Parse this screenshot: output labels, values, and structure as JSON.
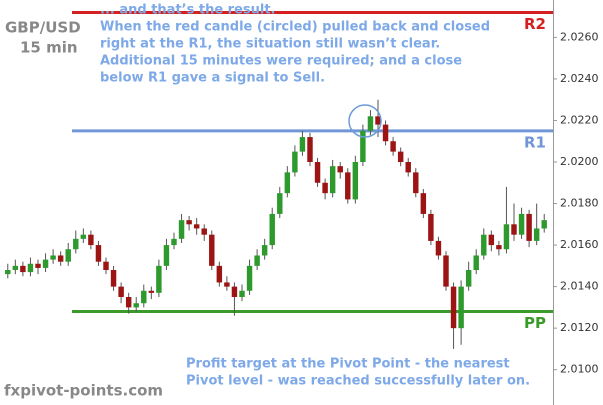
{
  "chart_data": {
    "type": "candlestick",
    "title": "GBP/USD",
    "subtitle": "15 min",
    "source": "fxpivot-points.com",
    "up_color": "#2e9a2e",
    "down_color": "#9c1414",
    "wick_color": "#555555",
    "ylim": [
      2.0083,
      2.0278
    ],
    "yticks": [
      {
        "value": 2.01,
        "label": "2.0100"
      },
      {
        "value": 2.012,
        "label": "2.0120"
      },
      {
        "value": 2.014,
        "label": "2.0140"
      },
      {
        "value": 2.016,
        "label": "2.0160"
      },
      {
        "value": 2.018,
        "label": "2.0180"
      },
      {
        "value": 2.02,
        "label": "2.0200"
      },
      {
        "value": 2.022,
        "label": "2.0220"
      },
      {
        "value": 2.024,
        "label": "2.0240"
      },
      {
        "value": 2.026,
        "label": "2.0260"
      }
    ],
    "levels": [
      {
        "name": "R2",
        "value": 2.0272,
        "color": "#d42020"
      },
      {
        "name": "R1",
        "value": 2.0215,
        "color": "#7196d8"
      },
      {
        "name": "PP",
        "value": 2.0128,
        "color": "#3a9a2a"
      }
    ],
    "annotations": [
      {
        "color": "#7ea9e8",
        "lines": [
          "... and that’s the result.",
          "When the red candle (circled) pulled back and closed",
          "right at the R1, the situation still wasn’t clear.",
          "Additional 15 minutes were required; and a close",
          "below R1 gave a signal to Sell."
        ]
      },
      {
        "color": "#7ea9e8",
        "lines": [
          "Profit target at the Pivot Point - the nearest",
          "Pivot level - was reached successfully later on."
        ]
      }
    ],
    "open": [
      2.0146,
      2.0148,
      2.015,
      2.0147,
      2.0151,
      2.0149,
      2.0153,
      2.0155,
      2.0152,
      2.0158,
      2.0163,
      2.0165,
      2.016,
      2.0152,
      2.0148,
      2.014,
      2.0135,
      2.013,
      2.0132,
      2.0138,
      2.0137,
      2.015,
      2.016,
      2.0163,
      2.0172,
      2.017,
      2.0168,
      2.0165,
      2.015,
      2.0142,
      2.014,
      2.0135,
      2.0138,
      2.015,
      2.0155,
      2.016,
      2.0175,
      2.0185,
      2.0195,
      2.0205,
      2.0212,
      2.02,
      2.019,
      2.0185,
      2.0198,
      2.0195,
      2.0182,
      2.02,
      2.0215,
      2.0222,
      2.0218,
      2.021,
      2.0205,
      2.02,
      2.0195,
      2.0185,
      2.0175,
      2.0162,
      2.0155,
      2.014,
      2.012,
      2.014,
      2.0148,
      2.0155,
      2.0165,
      2.016,
      2.0158,
      2.017,
      2.0165,
      2.0175,
      2.0162,
      2.0168
    ],
    "high": [
      2.0151,
      2.0153,
      2.0152,
      2.0154,
      2.0153,
      2.0156,
      2.0158,
      2.0157,
      2.0161,
      2.0167,
      2.0168,
      2.0167,
      2.0162,
      2.0154,
      2.015,
      2.0142,
      2.0137,
      2.0135,
      2.0141,
      2.014,
      2.0153,
      2.0163,
      2.0166,
      2.0175,
      2.0174,
      2.0173,
      2.017,
      2.0167,
      2.0152,
      2.0145,
      2.0142,
      2.0141,
      2.0153,
      2.0158,
      2.0163,
      2.0178,
      2.0188,
      2.0198,
      2.0208,
      2.0215,
      2.0214,
      2.0202,
      2.0192,
      2.0201,
      2.02,
      2.0197,
      2.0203,
      2.0218,
      2.0225,
      2.023,
      2.022,
      2.0212,
      2.0207,
      2.0202,
      2.0197,
      2.0187,
      2.0177,
      2.0164,
      2.0157,
      2.0142,
      2.0143,
      2.0152,
      2.0158,
      2.0168,
      2.0167,
      2.0162,
      2.0188,
      2.018,
      2.0178,
      2.0177,
      2.018,
      2.0175
    ],
    "low": [
      2.0144,
      2.0146,
      2.0145,
      2.0145,
      2.0146,
      2.0147,
      2.0151,
      2.015,
      2.015,
      2.0156,
      2.0161,
      2.0158,
      2.015,
      2.0146,
      2.0138,
      2.0132,
      2.0127,
      2.0128,
      2.013,
      2.0134,
      2.0135,
      2.0148,
      2.0158,
      2.0161,
      2.0167,
      2.0165,
      2.0162,
      2.0148,
      2.014,
      2.0138,
      2.0126,
      2.0133,
      2.0136,
      2.0148,
      2.0153,
      2.0158,
      2.0173,
      2.0183,
      2.0193,
      2.0203,
      2.0198,
      2.0188,
      2.0182,
      2.0183,
      2.0192,
      2.018,
      2.018,
      2.0198,
      2.0213,
      2.0212,
      2.0208,
      2.0203,
      2.0198,
      2.0193,
      2.0183,
      2.0173,
      2.016,
      2.0153,
      2.0138,
      2.011,
      2.0112,
      2.0138,
      2.0146,
      2.0153,
      2.0157,
      2.0155,
      2.0156,
      2.0162,
      2.0163,
      2.0159,
      2.016,
      2.0166
    ],
    "close": [
      2.0148,
      2.015,
      2.0147,
      2.0151,
      2.0149,
      2.0153,
      2.0155,
      2.0152,
      2.0158,
      2.0163,
      2.0165,
      2.016,
      2.0152,
      2.0148,
      2.014,
      2.0135,
      2.013,
      2.0132,
      2.0138,
      2.0137,
      2.015,
      2.016,
      2.0163,
      2.0172,
      2.017,
      2.0168,
      2.0165,
      2.015,
      2.0142,
      2.014,
      2.0135,
      2.0138,
      2.015,
      2.0155,
      2.016,
      2.0175,
      2.0185,
      2.0195,
      2.0205,
      2.0212,
      2.02,
      2.019,
      2.0185,
      2.0198,
      2.0195,
      2.0182,
      2.02,
      2.0215,
      2.0222,
      2.0218,
      2.021,
      2.0205,
      2.02,
      2.0195,
      2.0185,
      2.0175,
      2.0162,
      2.0155,
      2.014,
      2.012,
      2.014,
      2.0148,
      2.0155,
      2.0165,
      2.016,
      2.0158,
      2.017,
      2.0165,
      2.0175,
      2.0162,
      2.0168,
      2.0172
    ]
  }
}
